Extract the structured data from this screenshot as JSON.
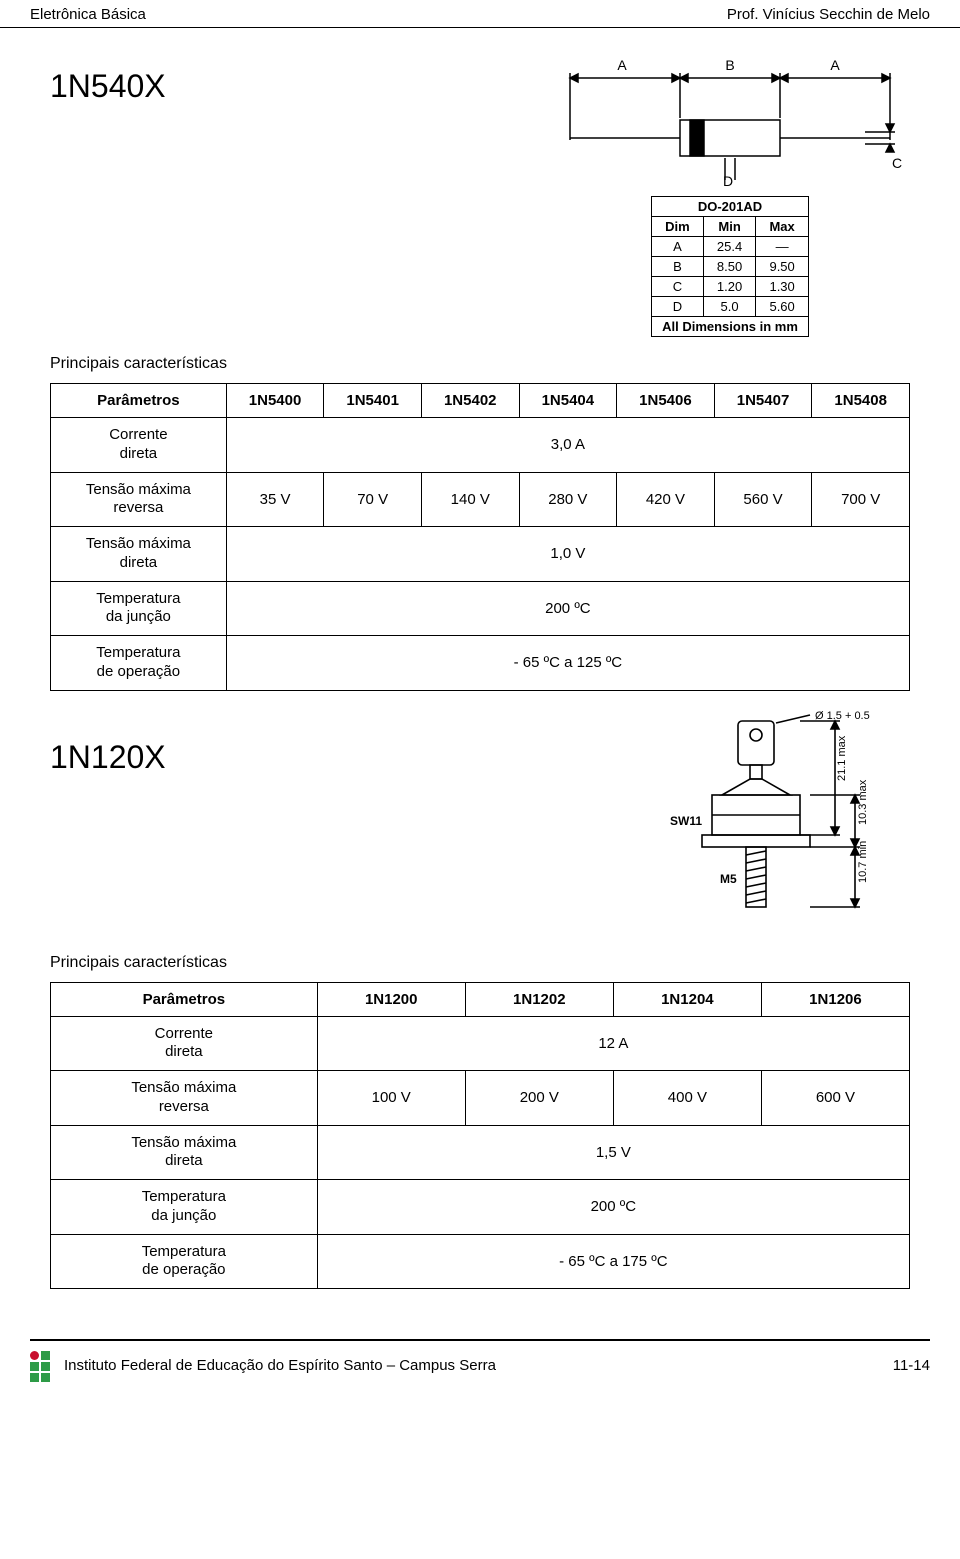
{
  "header": {
    "left": "Eletrônica Básica",
    "right": "Prof. Vinícius Secchin de Melo"
  },
  "section1": {
    "title": "1N540X",
    "subhead": "Principais características",
    "package": {
      "name": "DO-201AD",
      "cols": [
        "Dim",
        "Min",
        "Max"
      ],
      "rows": [
        [
          "A",
          "25.4",
          "—"
        ],
        [
          "B",
          "8.50",
          "9.50"
        ],
        [
          "C",
          "1.20",
          "1.30"
        ],
        [
          "D",
          "5.0",
          "5.60"
        ]
      ],
      "footer": "All Dimensions in mm",
      "labels": {
        "A": "A",
        "B": "B",
        "C": "C",
        "D": "D"
      }
    },
    "table": {
      "headers": [
        "Parâmetros",
        "1N5400",
        "1N5401",
        "1N5402",
        "1N5404",
        "1N5406",
        "1N5407",
        "1N5408"
      ],
      "rows": [
        {
          "param": "Corrente\ndireta",
          "span": "3,0 A"
        },
        {
          "param": "Tensão máxima\nreversa",
          "cells": [
            "35 V",
            "70 V",
            "140 V",
            "280 V",
            "420 V",
            "560 V",
            "700 V"
          ]
        },
        {
          "param": "Tensão máxima\ndireta",
          "span": "1,0 V"
        },
        {
          "param": "Temperatura\nda junção",
          "span": "200 ºC"
        },
        {
          "param": "Temperatura\nde operação",
          "span": "- 65 ºC a 125 ºC"
        }
      ]
    }
  },
  "section2": {
    "title": "1N120X",
    "subhead": "Principais características",
    "fig_labels": {
      "dia": "Ø 1.5 + 0.5",
      "h1": "21.1 max",
      "h2": "10.3 max",
      "h3": "10.7 min",
      "sw": "SW11",
      "m": "M5"
    },
    "table": {
      "headers": [
        "Parâmetros",
        "1N1200",
        "1N1202",
        "1N1204",
        "1N1206"
      ],
      "rows": [
        {
          "param": "Corrente\ndireta",
          "span": "12 A"
        },
        {
          "param": "Tensão máxima\nreversa",
          "cells": [
            "100 V",
            "200 V",
            "400 V",
            "600 V"
          ]
        },
        {
          "param": "Tensão máxima\ndireta",
          "span": "1,5 V"
        },
        {
          "param": "Temperatura\nda junção",
          "span": "200 ºC"
        },
        {
          "param": "Temperatura\nde operação",
          "span": "- 65 ºC a 175 ºC"
        }
      ]
    }
  },
  "footer": {
    "text": "Instituto Federal de Educação do Espírito Santo – Campus Serra",
    "page": "11-14"
  },
  "logo_colors": [
    "#2e9b47",
    "#c8102e",
    "#2e9b47",
    "#2e9b47",
    "#2e9b47",
    "#2e9b47",
    "#2e9b47",
    "#2e9b47",
    "#2e9b47"
  ]
}
